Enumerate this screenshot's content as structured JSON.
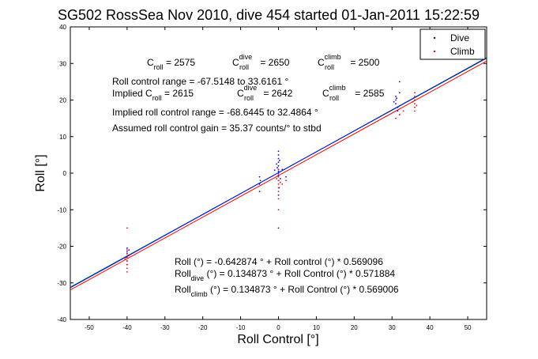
{
  "chart_data": {
    "type": "scatter",
    "title": "SG502 RossSea Nov 2010, dive 454 started 01-Jan-2011 15:22:59",
    "xlabel": "Roll Control [°]",
    "ylabel": "Roll [°]",
    "xlim": [
      -55,
      55
    ],
    "ylim": [
      -40,
      40
    ],
    "xticks": [
      -50,
      -40,
      -30,
      -20,
      -10,
      0,
      10,
      20,
      30,
      40,
      50
    ],
    "yticks": [
      -40,
      -30,
      -20,
      -10,
      0,
      10,
      20,
      30,
      40
    ],
    "legend": {
      "position": "top-right",
      "entries": [
        {
          "label": "Dive",
          "color": "#0000ff"
        },
        {
          "label": "Climb",
          "color": "#ff0000"
        }
      ]
    },
    "series": [
      {
        "name": "Dive",
        "color": "#0000ff",
        "points": [
          [
            -40,
            -20.5
          ],
          [
            -40,
            -21.5
          ],
          [
            -40,
            -22
          ],
          [
            -40.3,
            -23
          ],
          [
            -39.7,
            -22.5
          ],
          [
            -40,
            -24
          ],
          [
            -40,
            -25
          ],
          [
            -39.5,
            -21
          ],
          [
            -5,
            -5
          ],
          [
            -5,
            -3
          ],
          [
            -5,
            -1
          ],
          [
            -4.8,
            -2
          ],
          [
            0,
            5
          ],
          [
            0,
            4
          ],
          [
            0,
            3
          ],
          [
            0,
            2
          ],
          [
            0,
            1
          ],
          [
            0,
            0.5
          ],
          [
            0,
            0
          ],
          [
            0,
            -0.5
          ],
          [
            0,
            -1
          ],
          [
            0,
            -2
          ],
          [
            0.3,
            3.5
          ],
          [
            -0.3,
            1.5
          ],
          [
            0.5,
            -1.5
          ],
          [
            -0.5,
            2.5
          ],
          [
            0,
            -6
          ],
          [
            0,
            -15
          ],
          [
            0,
            6
          ],
          [
            0.2,
            -4
          ],
          [
            1,
            1
          ],
          [
            2,
            -1
          ],
          [
            -1,
            0.8
          ],
          [
            31,
            20
          ],
          [
            31,
            19
          ],
          [
            31.5,
            18
          ],
          [
            31,
            21
          ],
          [
            32,
            22
          ],
          [
            31.5,
            17
          ],
          [
            30.5,
            19.5
          ],
          [
            32,
            16
          ],
          [
            31.2,
            20.5
          ],
          [
            32,
            25
          ]
        ]
      },
      {
        "name": "Climb",
        "color": "#ff0000",
        "points": [
          [
            -40,
            -15
          ],
          [
            -40,
            -21
          ],
          [
            -40,
            -22
          ],
          [
            -40,
            -23
          ],
          [
            -40,
            -24
          ],
          [
            -40,
            -25
          ],
          [
            -40,
            -26
          ],
          [
            -40,
            -27
          ],
          [
            -39.5,
            -22.5
          ],
          [
            -40.5,
            -23.5
          ],
          [
            0,
            -1
          ],
          [
            0,
            -2
          ],
          [
            0,
            -3
          ],
          [
            0,
            -4
          ],
          [
            0,
            -5
          ],
          [
            0,
            1
          ],
          [
            0.5,
            -2.5
          ],
          [
            -0.5,
            -1.5
          ],
          [
            1,
            -3
          ],
          [
            2,
            -2
          ],
          [
            0,
            -7
          ],
          [
            0,
            -10
          ],
          [
            36,
            17
          ],
          [
            36,
            18
          ],
          [
            36,
            19
          ],
          [
            36,
            20
          ],
          [
            36,
            21
          ],
          [
            36,
            22
          ],
          [
            35.5,
            19.5
          ],
          [
            36.5,
            18.5
          ],
          [
            33,
            17
          ],
          [
            32,
            16
          ],
          [
            31,
            15
          ]
        ]
      }
    ],
    "fit_lines": [
      {
        "color": "#ff0000",
        "intercept": -0.642874,
        "slope": 0.569096
      },
      {
        "color": "#00a000",
        "intercept": 0.134873,
        "slope": 0.569006
      },
      {
        "color": "#0000ff",
        "intercept": 0.134873,
        "slope": 0.571884
      }
    ],
    "annotations": {
      "c_roll": {
        "base": "C",
        "sub": "roll",
        "value": " = 2575"
      },
      "c_roll_dive": {
        "base": "C",
        "sub": "roll",
        "sup": "dive",
        "value": " = 2650"
      },
      "c_roll_climb": {
        "base": "C",
        "sub": "roll",
        "sup": "climb",
        "value": " = 2500"
      },
      "range": "Roll control range = -67.5148 to 33.6161 °",
      "implied_c_roll": {
        "prefix": "Implied C",
        "sub": "roll",
        "value": " = 2615"
      },
      "implied_c_roll_dive": {
        "base": "C",
        "sub": "roll",
        "sup": "dive",
        "value": " = 2642"
      },
      "implied_c_roll_climb": {
        "base": "C",
        "sub": "roll",
        "sup": "climb",
        "value": " = 2585"
      },
      "implied_range": "Implied roll control range = -68.6445 to 32.4864 °",
      "gain": "Assumed roll control gain = 35.37 counts/° to stbd",
      "fit1": "Roll (°) = -0.642874 ° + Roll control (°) * 0.569096",
      "fit2": {
        "base": "Roll",
        "sub": "dive",
        "rest": " (°) = 0.134873 ° + Roll Control (°) * 0.571884"
      },
      "fit3": {
        "base": "Roll",
        "sub": "climb",
        "rest": " (°) = 0.134873 ° + Roll Control (°) * 0.569006"
      }
    }
  }
}
